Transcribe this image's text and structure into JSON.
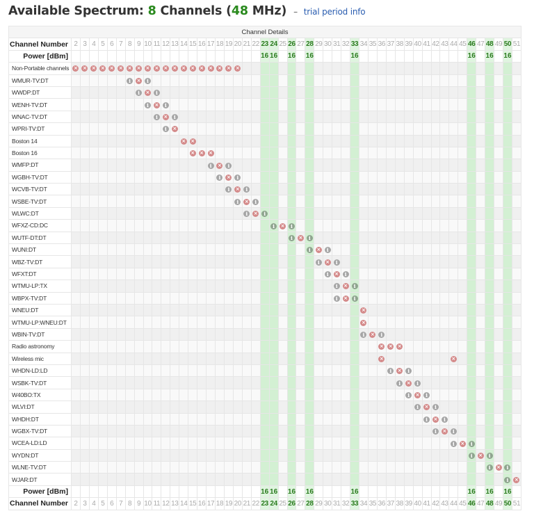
{
  "title": {
    "prefix": "Available Spectrum: ",
    "channel_count": "8",
    "channels_word": " Channels (",
    "bandwidth": "48",
    "bandwidth_unit": " MHz)",
    "separator": "–",
    "link": "trial period info"
  },
  "table": {
    "caption": "Channel Details",
    "channel_number_label": "Channel Number",
    "power_label": "Power [dBm]",
    "channels": [
      2,
      3,
      4,
      5,
      6,
      7,
      8,
      9,
      10,
      11,
      12,
      13,
      14,
      15,
      16,
      17,
      18,
      19,
      20,
      21,
      22,
      23,
      24,
      25,
      26,
      27,
      28,
      29,
      30,
      31,
      32,
      33,
      34,
      35,
      36,
      37,
      38,
      39,
      40,
      41,
      42,
      43,
      44,
      45,
      46,
      47,
      48,
      49,
      50,
      51
    ],
    "available_channels": [
      23,
      24,
      26,
      28,
      33,
      46,
      48,
      50
    ],
    "power": {
      "23": "16",
      "24": "16",
      "26": "16",
      "28": "16",
      "33": "16",
      "46": "16",
      "48": "16",
      "50": "16"
    },
    "icons": {
      "x": "blocked-icon",
      "i": "info-icon"
    },
    "rows": [
      {
        "label": "Non-Portable channels",
        "x": [
          2,
          3,
          4,
          5,
          6,
          7,
          8,
          9,
          10,
          11,
          12,
          13,
          14,
          15,
          16,
          17,
          18,
          19,
          20
        ],
        "i": []
      },
      {
        "label": "WMUR-TV:DT",
        "x": [
          9
        ],
        "i": [
          8,
          10
        ]
      },
      {
        "label": "WWDP:DT",
        "x": [
          10
        ],
        "i": [
          9,
          11
        ]
      },
      {
        "label": "WENH-TV:DT",
        "x": [
          11
        ],
        "i": [
          10,
          12
        ]
      },
      {
        "label": "WNAC-TV:DT",
        "x": [
          12
        ],
        "i": [
          11,
          13
        ]
      },
      {
        "label": "WPRI-TV:DT",
        "x": [
          13
        ],
        "i": [
          12
        ]
      },
      {
        "label": "Boston 14",
        "x": [
          14,
          15
        ],
        "i": []
      },
      {
        "label": "Boston 16",
        "x": [
          15,
          16,
          17
        ],
        "i": []
      },
      {
        "label": "WMFP:DT",
        "x": [
          18
        ],
        "i": [
          17,
          19
        ]
      },
      {
        "label": "WGBH-TV:DT",
        "x": [
          19
        ],
        "i": [
          18,
          20
        ]
      },
      {
        "label": "WCVB-TV:DT",
        "x": [
          20
        ],
        "i": [
          19,
          21
        ]
      },
      {
        "label": "WSBE-TV:DT",
        "x": [
          21
        ],
        "i": [
          20,
          22
        ]
      },
      {
        "label": "WLWC:DT",
        "x": [
          22
        ],
        "i": [
          21,
          23
        ]
      },
      {
        "label": "WFXZ-CD:DC",
        "x": [
          25
        ],
        "i": [
          24,
          26
        ]
      },
      {
        "label": "WUTF-DT:DT",
        "x": [
          27
        ],
        "i": [
          26,
          28
        ]
      },
      {
        "label": "WUNI:DT",
        "x": [
          29
        ],
        "i": [
          28,
          30
        ]
      },
      {
        "label": "WBZ-TV:DT",
        "x": [
          30
        ],
        "i": [
          29,
          31
        ]
      },
      {
        "label": "WFXT:DT",
        "x": [
          31
        ],
        "i": [
          30,
          32
        ]
      },
      {
        "label": "WTMU-LP:TX",
        "x": [
          32
        ],
        "i": [
          31,
          33
        ]
      },
      {
        "label": "WBPX-TV:DT",
        "x": [
          32
        ],
        "i": [
          31,
          33
        ]
      },
      {
        "label": "WNEU:DT",
        "x": [
          34
        ],
        "i": []
      },
      {
        "label": "WTMU-LP:WNEU:DT",
        "x": [
          34
        ],
        "i": []
      },
      {
        "label": "WBIN-TV:DT",
        "x": [
          35
        ],
        "i": [
          34,
          36
        ]
      },
      {
        "label": "Radio astronomy",
        "x": [
          36,
          37,
          38
        ],
        "i": []
      },
      {
        "label": "Wireless mic",
        "x": [
          36,
          44
        ],
        "i": []
      },
      {
        "label": "WHDN-LD:LD",
        "x": [
          38
        ],
        "i": [
          37,
          39
        ]
      },
      {
        "label": "WSBK-TV:DT",
        "x": [
          39
        ],
        "i": [
          38,
          40
        ]
      },
      {
        "label": "W40BO:TX",
        "x": [
          40
        ],
        "i": [
          39,
          41
        ]
      },
      {
        "label": "WLVI:DT",
        "x": [
          41
        ],
        "i": [
          40,
          42
        ]
      },
      {
        "label": "WHDH:DT",
        "x": [
          42
        ],
        "i": [
          41,
          43
        ]
      },
      {
        "label": "WGBX-TV:DT",
        "x": [
          43
        ],
        "i": [
          42,
          44
        ]
      },
      {
        "label": "WCEA-LD:LD",
        "x": [
          45
        ],
        "i": [
          44,
          46
        ]
      },
      {
        "label": "WYDN:DT",
        "x": [
          47
        ],
        "i": [
          46,
          48
        ]
      },
      {
        "label": "WLNE-TV:DT",
        "x": [
          49
        ],
        "i": [
          48,
          50
        ]
      },
      {
        "label": "WJAR:DT",
        "x": [
          51
        ],
        "i": [
          50
        ]
      }
    ]
  },
  "colors": {
    "available_green": "#2a8a1e",
    "available_bg": "#d3f0d3",
    "blocked_icon": "#d48a8a",
    "info_icon": "#a6a6a6",
    "link": "#2a5db0"
  }
}
